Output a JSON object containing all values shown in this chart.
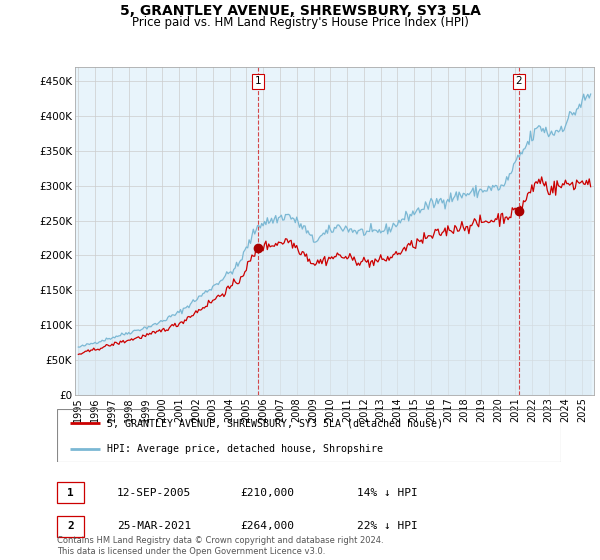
{
  "title": "5, GRANTLEY AVENUE, SHREWSBURY, SY3 5LA",
  "subtitle": "Price paid vs. HM Land Registry's House Price Index (HPI)",
  "ylabel_ticks": [
    "£0",
    "£50K",
    "£100K",
    "£150K",
    "£200K",
    "£250K",
    "£300K",
    "£350K",
    "£400K",
    "£450K"
  ],
  "ytick_values": [
    0,
    50000,
    100000,
    150000,
    200000,
    250000,
    300000,
    350000,
    400000,
    450000
  ],
  "ylim": [
    0,
    470000
  ],
  "sale1_date": 2005.7,
  "sale1_price": 210000,
  "sale1_label": "1",
  "sale2_date": 2021.23,
  "sale2_price": 264000,
  "sale2_label": "2",
  "hpi_color": "#7bb8d4",
  "hpi_fill_color": "#daeaf5",
  "price_color": "#cc0000",
  "sale_marker_color": "#aa0000",
  "vline_color": "#cc0000",
  "grid_color": "#cccccc",
  "background_color": "#ffffff",
  "chart_bg_color": "#e8f4fb",
  "legend_label_red": "5, GRANTLEY AVENUE, SHREWSBURY, SY3 5LA (detached house)",
  "legend_label_blue": "HPI: Average price, detached house, Shropshire",
  "table_row1": [
    "1",
    "12-SEP-2005",
    "£210,000",
    "14% ↓ HPI"
  ],
  "table_row2": [
    "2",
    "25-MAR-2021",
    "£264,000",
    "22% ↓ HPI"
  ],
  "footnote": "Contains HM Land Registry data © Crown copyright and database right 2024.\nThis data is licensed under the Open Government Licence v3.0."
}
